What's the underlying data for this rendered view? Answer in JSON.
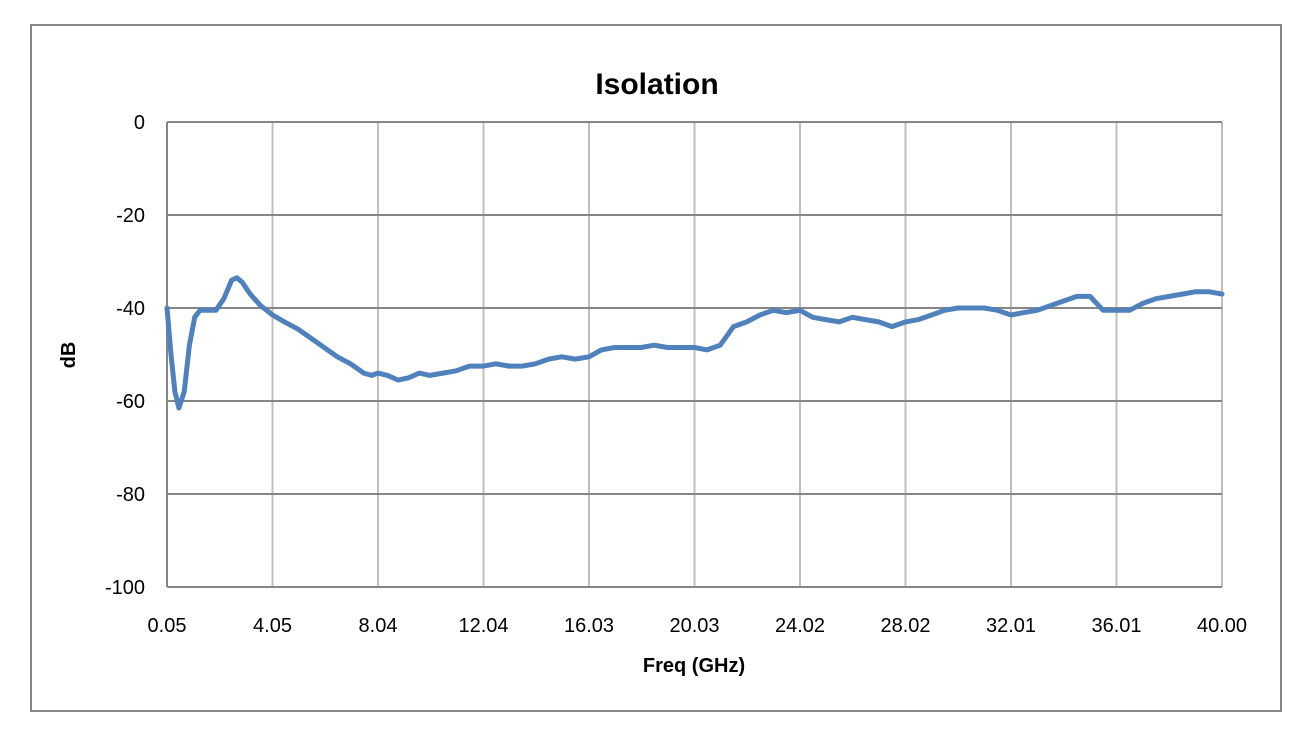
{
  "chart_data": {
    "type": "line",
    "title": "Isolation",
    "xlabel": "Freq (GHz)",
    "ylabel": "dB",
    "x_tick_labels": [
      "0.05",
      "4.05",
      "8.04",
      "12.04",
      "16.03",
      "20.03",
      "24.02",
      "28.02",
      "32.01",
      "36.01",
      "40.00"
    ],
    "y_tick_labels": [
      "0",
      "-20",
      "-40",
      "-60",
      "-80",
      "-100"
    ],
    "xlim": [
      0.05,
      40.0
    ],
    "ylim": [
      -100,
      0
    ],
    "grid": true,
    "legend": "none",
    "series": [
      {
        "name": "Isolation",
        "color": "#4F81BD",
        "x": [
          0.05,
          0.2,
          0.35,
          0.5,
          0.7,
          0.9,
          1.1,
          1.3,
          1.6,
          1.9,
          2.2,
          2.5,
          2.7,
          2.9,
          3.2,
          3.6,
          4.05,
          4.5,
          5.0,
          5.5,
          6.0,
          6.5,
          7.0,
          7.5,
          7.8,
          8.04,
          8.4,
          8.8,
          9.2,
          9.6,
          10.0,
          10.5,
          11.0,
          11.5,
          12.04,
          12.5,
          13.0,
          13.5,
          14.0,
          14.5,
          15.0,
          15.5,
          16.03,
          16.5,
          17.0,
          17.5,
          18.0,
          18.5,
          19.0,
          19.5,
          20.03,
          20.5,
          21.0,
          21.5,
          22.0,
          22.5,
          23.0,
          23.5,
          24.02,
          24.5,
          25.0,
          25.5,
          26.0,
          26.5,
          27.0,
          27.5,
          28.02,
          28.5,
          29.0,
          29.5,
          30.0,
          30.5,
          31.0,
          31.5,
          32.01,
          32.5,
          33.0,
          33.5,
          34.0,
          34.5,
          35.0,
          35.5,
          36.01,
          36.5,
          37.0,
          37.5,
          38.0,
          38.5,
          39.0,
          39.5,
          40.0
        ],
        "y": [
          -40,
          -50,
          -58,
          -61.5,
          -58,
          -48,
          -42,
          -40.5,
          -40.5,
          -40.5,
          -38,
          -34,
          -33.5,
          -34.5,
          -37,
          -39.5,
          -41.5,
          -43,
          -44.5,
          -46.5,
          -48.5,
          -50.5,
          -52,
          -54,
          -54.5,
          -54,
          -54.5,
          -55.5,
          -55,
          -54,
          -54.5,
          -54,
          -53.5,
          -52.5,
          -52.5,
          -52,
          -52.5,
          -52.5,
          -52,
          -51,
          -50.5,
          -51,
          -50.5,
          -49,
          -48.5,
          -48.5,
          -48.5,
          -48,
          -48.5,
          -48.5,
          -48.5,
          -49,
          -48,
          -44,
          -43,
          -41.5,
          -40.5,
          -41,
          -40.5,
          -42,
          -42.5,
          -43,
          -42,
          -42.5,
          -43,
          -44,
          -43,
          -42.5,
          -41.5,
          -40.5,
          -40,
          -40,
          -40,
          -40.5,
          -41.5,
          -41,
          -40.5,
          -39.5,
          -38.5,
          -37.5,
          -37.5,
          -40.5,
          -40.5,
          -40.5,
          -39,
          -38,
          -37.5,
          -37,
          -36.5,
          -36.5,
          -37
        ]
      }
    ]
  }
}
